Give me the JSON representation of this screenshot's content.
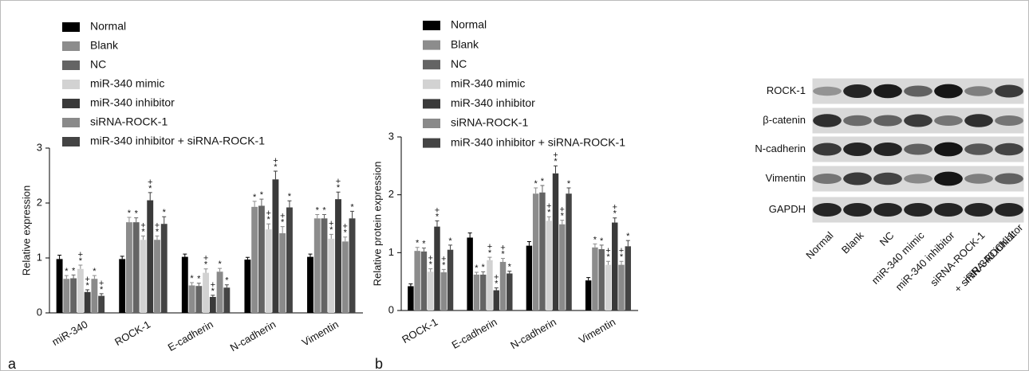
{
  "chart_data": [
    {
      "type": "bar",
      "panel": "a",
      "y_label": "Relative expression",
      "categories": [
        "miR-340",
        "ROCK-1",
        "E-cadherin",
        "N-cadherin",
        "Vimentin"
      ],
      "ylim": [
        0,
        3
      ],
      "yticks": [
        0,
        1,
        2,
        3
      ],
      "series": [
        {
          "name": "Normal",
          "color": "#000000",
          "values": [
            0.98,
            0.98,
            1.02,
            0.97,
            1.02
          ],
          "errors": [
            0.07,
            0.05,
            0.05,
            0.04,
            0.05
          ],
          "markers": [
            null,
            null,
            null,
            null,
            null
          ]
        },
        {
          "name": "Blank",
          "color": "#8c8c8c",
          "values": [
            0.62,
            1.65,
            0.5,
            1.93,
            1.72
          ],
          "errors": [
            0.06,
            0.09,
            0.05,
            0.1,
            0.07
          ],
          "markers": [
            "*",
            "*",
            "*",
            "*",
            "*"
          ]
        },
        {
          "name": "NC",
          "color": "#646464",
          "values": [
            0.63,
            1.65,
            0.49,
            1.95,
            1.72
          ],
          "errors": [
            0.06,
            0.08,
            0.05,
            0.12,
            0.07
          ],
          "markers": [
            "*",
            "*",
            "*",
            "*",
            "*"
          ]
        },
        {
          "name": "miR-340 mimic",
          "color": "#d2d2d2",
          "values": [
            0.8,
            1.33,
            0.73,
            1.52,
            1.35
          ],
          "errors": [
            0.07,
            0.07,
            0.07,
            0.1,
            0.08
          ],
          "markers": [
            [
              "+",
              "*"
            ],
            [
              "+",
              "*"
            ],
            [
              "+",
              "*"
            ],
            [
              "+",
              "*"
            ],
            [
              "+",
              "*"
            ]
          ]
        },
        {
          "name": "miR-340 inhibitor",
          "color": "#3a3a3a",
          "values": [
            0.38,
            2.05,
            0.29,
            2.43,
            2.07
          ],
          "errors": [
            0.04,
            0.14,
            0.03,
            0.15,
            0.13
          ],
          "markers": [
            [
              "+",
              "*"
            ],
            [
              "+",
              "*"
            ],
            [
              "+",
              "*"
            ],
            [
              "+",
              "*"
            ],
            [
              "+",
              "*"
            ]
          ]
        },
        {
          "name": "siRNA-ROCK-1",
          "color": "#8a8a8a",
          "values": [
            0.62,
            1.33,
            0.75,
            1.45,
            1.3
          ],
          "errors": [
            0.06,
            0.07,
            0.06,
            0.12,
            0.08
          ],
          "markers": [
            "*",
            [
              "+",
              "*"
            ],
            "*",
            [
              "+",
              "*"
            ],
            [
              "+",
              "*"
            ]
          ]
        },
        {
          "name": "miR-340 inhibitor + siRNA-ROCK-1",
          "color": "#444444",
          "values": [
            0.31,
            1.62,
            0.46,
            1.92,
            1.72
          ],
          "errors": [
            0.04,
            0.13,
            0.05,
            0.12,
            0.13
          ],
          "markers": [
            [
              "+",
              "*"
            ],
            "*",
            "*",
            "*",
            "*"
          ]
        }
      ]
    },
    {
      "type": "bar",
      "panel": "b",
      "y_label": "Relative protein expression",
      "categories": [
        "ROCK-1",
        "E-cadherin",
        "N-cadherin",
        "Vimentin"
      ],
      "ylim": [
        0,
        3
      ],
      "yticks": [
        0,
        1,
        2,
        3
      ],
      "series": [
        {
          "name": "Normal",
          "color": "#000000",
          "values": [
            0.42,
            1.26,
            1.12,
            0.52
          ],
          "errors": [
            0.04,
            0.08,
            0.07,
            0.05
          ],
          "markers": [
            null,
            null,
            null,
            null
          ]
        },
        {
          "name": "Blank",
          "color": "#8c8c8c",
          "values": [
            1.03,
            0.62,
            2.02,
            1.09
          ],
          "errors": [
            0.06,
            0.04,
            0.1,
            0.06
          ],
          "markers": [
            "*",
            "*",
            "*",
            "*"
          ]
        },
        {
          "name": "NC",
          "color": "#646464",
          "values": [
            1.02,
            0.62,
            2.04,
            1.06
          ],
          "errors": [
            0.06,
            0.05,
            0.12,
            0.07
          ],
          "markers": [
            "*",
            "*",
            "*",
            "*"
          ]
        },
        {
          "name": "miR-340 mimic",
          "color": "#d2d2d2",
          "values": [
            0.67,
            0.87,
            1.55,
            0.79
          ],
          "errors": [
            0.05,
            0.05,
            0.07,
            0.06
          ],
          "markers": [
            [
              "+",
              "*"
            ],
            [
              "+",
              "*"
            ],
            [
              "+",
              "*"
            ],
            [
              "+",
              "*"
            ]
          ]
        },
        {
          "name": "miR-340 inhibitor",
          "color": "#3a3a3a",
          "values": [
            1.45,
            0.35,
            2.37,
            1.52
          ],
          "errors": [
            0.1,
            0.04,
            0.13,
            0.08
          ],
          "markers": [
            [
              "+",
              "*"
            ],
            [
              "+",
              "*"
            ],
            [
              "+",
              "*"
            ],
            [
              "+",
              "*"
            ]
          ]
        },
        {
          "name": "siRNA-ROCK-1",
          "color": "#8a8a8a",
          "values": [
            0.66,
            0.84,
            1.49,
            0.79
          ],
          "errors": [
            0.05,
            0.06,
            0.07,
            0.06
          ],
          "markers": [
            [
              "+",
              "*"
            ],
            [
              "+",
              "*"
            ],
            [
              "+",
              "*"
            ],
            [
              "+",
              "*"
            ]
          ]
        },
        {
          "name": "miR-340 inhibitor + siRNA-ROCK-1",
          "color": "#444444",
          "values": [
            1.05,
            0.64,
            2.02,
            1.11
          ],
          "errors": [
            0.08,
            0.04,
            0.1,
            0.1
          ],
          "markers": [
            "*",
            "*",
            "*",
            "*"
          ]
        }
      ]
    }
  ],
  "blot": {
    "row_labels": [
      "ROCK-1",
      "β-catenin",
      "N-cadherin",
      "Vimentin",
      "GAPDH"
    ],
    "lane_labels": [
      "Normal",
      "Blank",
      "NC",
      "miR-340 mimic",
      "miR-340 inhibitor",
      "siRNA-ROCK-1",
      [
        "miR-340 inhibitor",
        "+ siRNA-ROCK-1"
      ]
    ]
  }
}
